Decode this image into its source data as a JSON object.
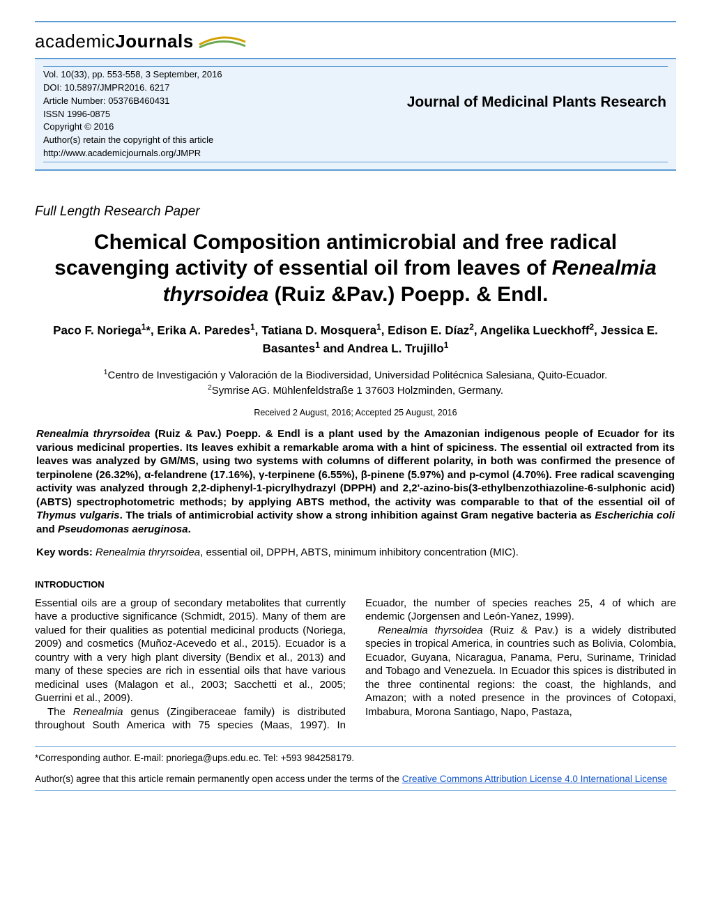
{
  "logo": {
    "word1": "academic",
    "word2": "Journals"
  },
  "header": {
    "vol_line": "Vol. 10(33), pp. 553-558, 3 September, 2016",
    "doi_line": "DOI: 10.5897/JMPR2016. 6217",
    "article_line": "Article Number: 05376B460431",
    "issn_line": "ISSN 1996-0875",
    "copyright_line": "Copyright © 2016",
    "retain_line": "Author(s) retain the copyright of this article",
    "url_line": "http://www.academicjournals.org/JMPR",
    "journal_name": "Journal of Medicinal Plants Research",
    "bg_color": "#eaf3fb",
    "rule_color": "#5b9bd5"
  },
  "paper_type": "Full Length Research Paper",
  "title": {
    "pre": "Chemical Composition antimicrobial and free radical scavenging activity of essential oil from leaves of ",
    "species": "Renealmia thyrsoidea",
    "post": " (Ruiz &Pav.) Poepp. & Endl."
  },
  "authors_html": "Paco F. Noriega<sup>1</sup>*, Erika A. Paredes<sup>1</sup>, Tatiana D. Mosquera<sup>1</sup>, Edison E. Díaz<sup>2</sup>, Angelika Lueckhoff<sup>2</sup>, Jessica E. Basantes<sup>1</sup> and Andrea L. Trujillo<sup>1</sup>",
  "affiliations_html": "<sup>1</sup>Centro de Investigación y Valoración de la Biodiversidad, Universidad Politécnica Salesiana, Quito-Ecuador.<br><sup>2</sup>Symrise AG. Mühlenfeldstraße 1 37603 Holzminden, Germany.",
  "dates": "Received 2 August, 2016; Accepted 25 August, 2016",
  "abstract": {
    "sp1": "Renealmia thryrsoidea",
    "t1": " (Ruiz & Pav.) Poepp. & Endl is a plant used by the Amazonian indigenous people of Ecuador for its various medicinal properties. Its leaves exhibit a remarkable aroma with a hint of spiciness. The essential oil extracted from its leaves was analyzed by GM/MS, using two systems with columns of different polarity, in both was confirmed the presence of terpinolene (26.32%), α-felandrene (17.16%), γ-terpinene (6.55%), β-pinene (5.97%) and p-cymol (4.70%). Free radical scavenging activity was analyzed through 2,2-diphenyl-1-picrylhydrazyl (DPPH) and 2,2'-azino-bis(3-ethylbenzothiazoline-6-sulphonic acid) (ABTS) spectrophotometric methods; by applying ABTS method, the activity was comparable to that of the essential oil of ",
    "sp2": "Thymus vulgaris",
    "t2": ". The trials of antimicrobial activity show a strong inhibition against Gram negative bacteria as ",
    "sp3": "Escherichia coli",
    "t3": " and ",
    "sp4": "Pseudomonas aeruginosa",
    "t4": "."
  },
  "keywords": {
    "label": "Key words:",
    "sp": "Renealmia thryrsoidea",
    "rest": ", essential oil, DPPH, ABTS, minimum inhibitory concentration (MIC)."
  },
  "intro_head": "INTRODUCTION",
  "body": {
    "p1": "Essential oils are a group of secondary metabolites that currently have a productive significance (Schmidt, 2015). Many of them are valued for their qualities as potential medicinal products (Noriega, 2009) and cosmetics (Muñoz-Acevedo et al., 2015). Ecuador is a country with a very high plant diversity (Bendix et al., 2013) and many of these species are rich in essential oils that have various medicinal uses (Malagon et al., 2003; Sacchetti et al., 2005; Guerrini et al., 2009).",
    "p2a": "The ",
    "p2i": "Renealmia",
    "p2b": " genus (Zingiberaceae family) is distributed throughout South America with 75 species (Maas, 1997). In Ecuador, the number of species reaches 25, 4 of which are endemic (Jorgensen and León-Yanez, 1999).",
    "p3i": "Renealmia thyrsoidea",
    "p3": " (Ruiz & Pav.) is a widely distributed species in tropical America, in countries such as Bolivia, Colombia, Ecuador, Guyana, Nicaragua, Panama, Peru, Suriname, Trinidad and Tobago and Venezuela. In Ecuador this spices is distributed in the three continental regions: the coast, the highlands, and Amazon; with a noted presence in the provinces of Cotopaxi, Imbabura, Morona Santiago, Napo, Pastaza,"
  },
  "footer": {
    "corr": "*Corresponding author. E-mail: pnoriega@ups.edu.ec. Tel: +593 984258179.",
    "oa_pre": "Author(s) agree that this article remain permanently open access under the terms of the ",
    "oa_link": "Creative Commons Attribution License 4.0 International License"
  },
  "colors": {
    "link": "#1155cc",
    "rule": "#5b9bd5",
    "header_bg": "#eaf3fb"
  },
  "fonts": {
    "body": "Arial",
    "header": "Trebuchet MS / Century Gothic",
    "title_size_pt": 22,
    "body_size_pt": 11,
    "abstract_size_pt": 11
  }
}
